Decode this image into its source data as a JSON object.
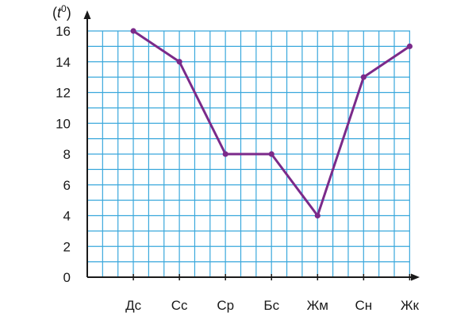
{
  "chart_data": {
    "type": "line",
    "title": "",
    "xlabel": "",
    "ylabel": "(t⁰)",
    "ylabel_parts": {
      "open": "(",
      "symbol": "t",
      "superscript": "0",
      "close": ")"
    },
    "categories": [
      "Дс",
      "Сс",
      "Ср",
      "Бс",
      "Жм",
      "Сн",
      "Жк"
    ],
    "series": [
      {
        "values": [
          16,
          14,
          8,
          8,
          4,
          13,
          15
        ]
      }
    ],
    "ylim": [
      0,
      16
    ],
    "y_ticks": [
      0,
      2,
      4,
      6,
      8,
      10,
      12,
      14,
      16
    ],
    "grid": true,
    "colors": {
      "grid": "#3aa8dc",
      "line": "#7b2a8a",
      "axis": "#1a1a1a"
    }
  }
}
